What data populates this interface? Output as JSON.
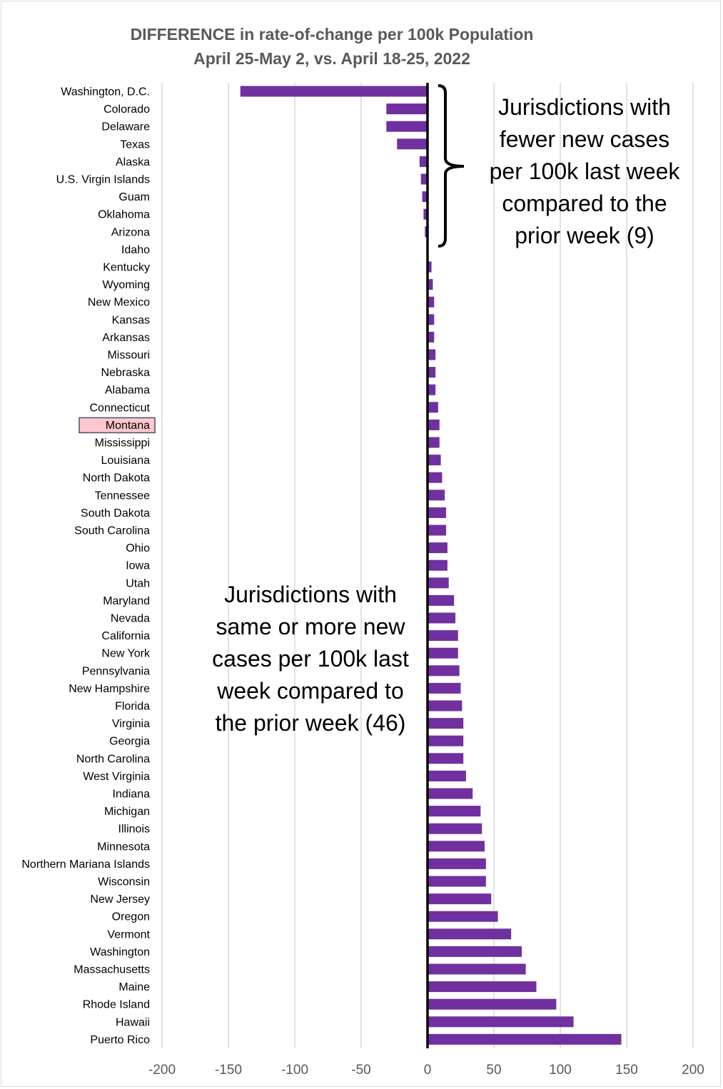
{
  "chart_data": {
    "type": "bar",
    "orientation": "horizontal",
    "title": "DIFFERENCE in rate-of-change per 100k Population",
    "subtitle": "April 25-May 2, vs. April 18-25, 2022",
    "xlim": [
      -200,
      200
    ],
    "xticks": [
      "-200",
      "-150",
      "-100",
      "-50",
      "0",
      "50",
      "100",
      "150",
      "200"
    ],
    "grid": true,
    "bar_color": "#7030a0",
    "zero_line_color": "#000000",
    "highlight_category": "Montana",
    "highlight_fill": "#ffc7ce",
    "highlight_border": "#44546a",
    "categories": [
      "Washington, D.C.",
      "Colorado",
      "Delaware",
      "Texas",
      "Alaska",
      "U.S. Virgin Islands",
      "Guam",
      "Oklahoma",
      "Arizona",
      "Idaho",
      "Kentucky",
      "Wyoming",
      "New Mexico",
      "Kansas",
      "Arkansas",
      "Missouri",
      "Nebraska",
      "Alabama",
      "Connecticut",
      "Montana",
      "Mississippi",
      "Louisiana",
      "North Dakota",
      "Tennessee",
      "South Dakota",
      "South Carolina",
      "Ohio",
      "Iowa",
      "Utah",
      "Maryland",
      "Nevada",
      "California",
      "New York",
      "Pennsylvania",
      "New Hampshire",
      "Florida",
      "Virginia",
      "Georgia",
      "North Carolina",
      "West Virginia",
      "Indiana",
      "Michigan",
      "Illinois",
      "Minnesota",
      "Northern Mariana Islands",
      "Wisconsin",
      "New Jersey",
      "Oregon",
      "Vermont",
      "Washington",
      "Massachusetts",
      "Maine",
      "Rhode Island",
      "Hawaii",
      "Puerto Rico"
    ],
    "values": [
      -141,
      -31,
      -31,
      -23,
      -6,
      -5,
      -4,
      -3,
      -2,
      0,
      3,
      4,
      5,
      5,
      5,
      6,
      6,
      6,
      8,
      9,
      9,
      10,
      11,
      13,
      14,
      14,
      15,
      15,
      16,
      20,
      21,
      23,
      23,
      24,
      25,
      26,
      27,
      27,
      27,
      29,
      34,
      40,
      41,
      43,
      44,
      44,
      48,
      53,
      63,
      71,
      74,
      82,
      97,
      110,
      146
    ],
    "annotations": {
      "fewer": [
        "Jurisdictions with",
        "fewer new cases",
        "per 100k last week",
        "compared to the",
        "prior week (9)"
      ],
      "more": [
        "Jurisdictions with",
        "same or more new",
        "cases per 100k last",
        "week compared to",
        "the prior week (46)"
      ]
    }
  }
}
